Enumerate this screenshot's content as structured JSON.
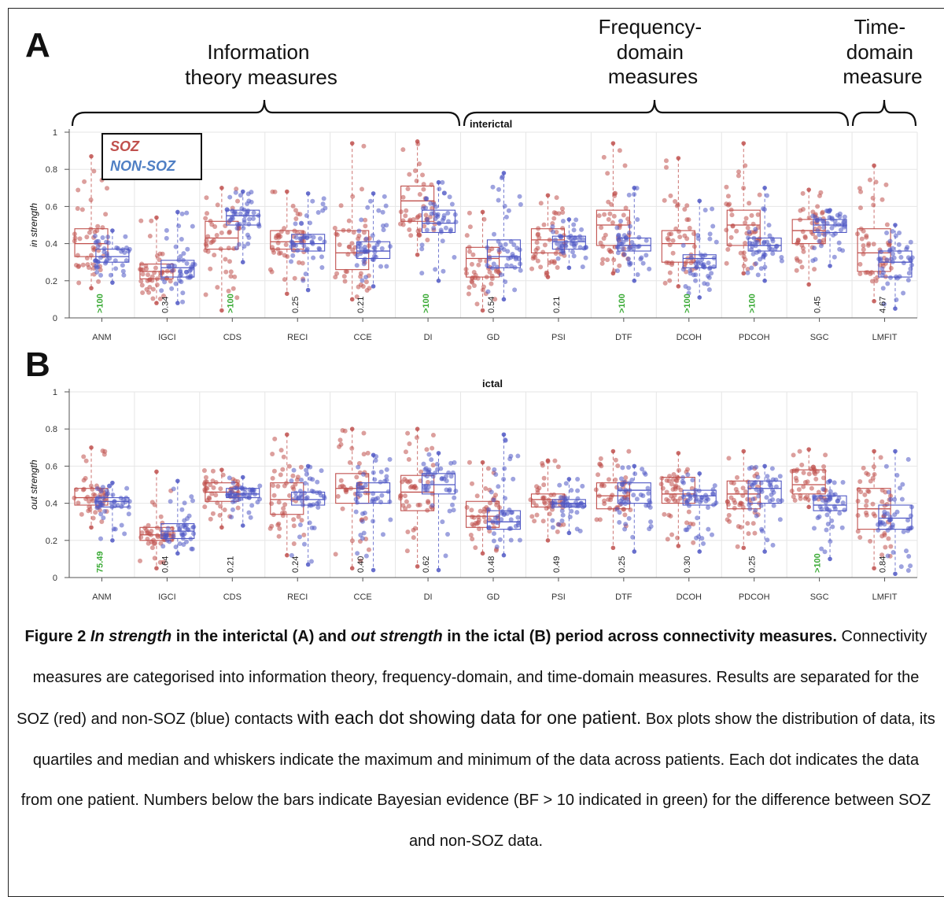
{
  "panel_labels": {
    "a": "A",
    "b": "B"
  },
  "groups": [
    {
      "label_lines": [
        "Information",
        "theory measures"
      ]
    },
    {
      "label_lines": [
        "Frequency-",
        "domain",
        "measures"
      ]
    },
    {
      "label_lines": [
        "Time-",
        "domain",
        "measure"
      ]
    }
  ],
  "legend": {
    "soz": "SOZ",
    "nonsoz": "NON-SOZ"
  },
  "colors": {
    "soz": "#c0504d",
    "nonsoz": "#4f57c4",
    "green": "#3aaa35",
    "grid": "#e6e6e6",
    "text": "#333333"
  },
  "chart_data": [
    {
      "type": "box",
      "title": "interictal",
      "ylabel": "in strength",
      "ylim": [
        0,
        1
      ],
      "yticks": [
        "0",
        "0.2",
        "0.4",
        "0.6",
        "0.8",
        "1"
      ],
      "grid": true,
      "legend_position": "top-left",
      "categories": [
        "ANM",
        "IGCI",
        "CDS",
        "RECI",
        "CCE",
        "DI",
        "GD",
        "PSI",
        "DTF",
        "DCOH",
        "PDCOH",
        "SGC",
        "LMFIT"
      ],
      "bayes_factors": [
        ">100",
        "0.34",
        ">100",
        "0.25",
        "0.21",
        ">100",
        "0.54",
        "0.21",
        ">100",
        ">100",
        ">100",
        "0.45",
        "4.67"
      ],
      "bf_green": [
        true,
        false,
        true,
        false,
        false,
        true,
        false,
        false,
        true,
        true,
        true,
        false,
        false
      ],
      "series": [
        {
          "name": "SOZ",
          "stats": [
            [
              0.16,
              0.33,
              0.4,
              0.48,
              0.87
            ],
            [
              0.08,
              0.21,
              0.25,
              0.29,
              0.54
            ],
            [
              0.04,
              0.37,
              0.43,
              0.52,
              0.7
            ],
            [
              0.13,
              0.37,
              0.41,
              0.47,
              0.68
            ],
            [
              0.1,
              0.26,
              0.35,
              0.47,
              0.94
            ],
            [
              0.34,
              0.52,
              0.63,
              0.71,
              0.95
            ],
            [
              0.04,
              0.22,
              0.32,
              0.38,
              0.57
            ],
            [
              0.22,
              0.35,
              0.42,
              0.48,
              0.66
            ],
            [
              0.24,
              0.39,
              0.5,
              0.58,
              0.94
            ],
            [
              0.17,
              0.3,
              0.4,
              0.47,
              0.86
            ],
            [
              0.24,
              0.39,
              0.5,
              0.58,
              0.94
            ],
            [
              0.18,
              0.4,
              0.47,
              0.53,
              0.69
            ],
            [
              0.09,
              0.25,
              0.35,
              0.48,
              0.82
            ]
          ]
        },
        {
          "name": "NON-SOZ",
          "stats": [
            [
              0.19,
              0.3,
              0.33,
              0.37,
              0.47
            ],
            [
              0.08,
              0.22,
              0.27,
              0.31,
              0.57
            ],
            [
              0.3,
              0.5,
              0.55,
              0.58,
              0.68
            ],
            [
              0.15,
              0.36,
              0.4,
              0.45,
              0.67
            ],
            [
              0.17,
              0.32,
              0.36,
              0.41,
              0.67
            ],
            [
              0.2,
              0.46,
              0.51,
              0.58,
              0.73
            ],
            [
              0.1,
              0.27,
              0.33,
              0.42,
              0.78
            ],
            [
              0.27,
              0.37,
              0.41,
              0.44,
              0.53
            ],
            [
              0.2,
              0.36,
              0.39,
              0.43,
              0.7
            ],
            [
              0.11,
              0.27,
              0.32,
              0.34,
              0.63
            ],
            [
              0.2,
              0.36,
              0.39,
              0.43,
              0.7
            ],
            [
              0.28,
              0.46,
              0.5,
              0.53,
              0.58
            ],
            [
              0.05,
              0.22,
              0.3,
              0.36,
              0.5
            ]
          ]
        }
      ]
    },
    {
      "type": "box",
      "title": "ictal",
      "ylabel": "out strength",
      "ylim": [
        0,
        1
      ],
      "yticks": [
        "0",
        "0.2",
        "0.4",
        "0.6",
        "0.8",
        "1"
      ],
      "grid": true,
      "categories": [
        "ANM",
        "IGCI",
        "CDS",
        "RECI",
        "CCE",
        "DI",
        "GD",
        "PSI",
        "DTF",
        "DCOH",
        "PDCOH",
        "SGC",
        "LMFIT"
      ],
      "bayes_factors": [
        "75.49",
        "0.64",
        "0.21",
        "0.24",
        "0.40",
        "0.62",
        "0.48",
        "0.49",
        "0.25",
        "0.30",
        "0.25",
        ">100",
        "0.84"
      ],
      "bf_green": [
        true,
        false,
        false,
        false,
        false,
        false,
        false,
        false,
        false,
        false,
        false,
        true,
        false
      ],
      "series": [
        {
          "name": "SOZ",
          "stats": [
            [
              0.27,
              0.39,
              0.43,
              0.48,
              0.7
            ],
            [
              0.05,
              0.2,
              0.23,
              0.27,
              0.57
            ],
            [
              0.27,
              0.41,
              0.46,
              0.51,
              0.58
            ],
            [
              0.12,
              0.34,
              0.42,
              0.51,
              0.77
            ],
            [
              0.05,
              0.4,
              0.48,
              0.56,
              0.8
            ],
            [
              0.06,
              0.36,
              0.46,
              0.55,
              0.8
            ],
            [
              0.13,
              0.27,
              0.33,
              0.41,
              0.62
            ],
            [
              0.2,
              0.38,
              0.42,
              0.45,
              0.63
            ],
            [
              0.16,
              0.37,
              0.44,
              0.51,
              0.68
            ],
            [
              0.17,
              0.4,
              0.45,
              0.54,
              0.67
            ],
            [
              0.16,
              0.37,
              0.45,
              0.52,
              0.68
            ],
            [
              0.38,
              0.45,
              0.5,
              0.58,
              0.69
            ],
            [
              0.05,
              0.26,
              0.37,
              0.48,
              0.68
            ]
          ]
        },
        {
          "name": "NON-SOZ",
          "stats": [
            [
              0.2,
              0.38,
              0.41,
              0.43,
              0.51
            ],
            [
              0.13,
              0.21,
              0.25,
              0.29,
              0.52
            ],
            [
              0.28,
              0.43,
              0.45,
              0.48,
              0.54
            ],
            [
              0.07,
              0.39,
              0.42,
              0.46,
              0.6
            ],
            [
              0.04,
              0.4,
              0.46,
              0.51,
              0.66
            ],
            [
              0.04,
              0.45,
              0.5,
              0.56,
              0.67
            ],
            [
              0.12,
              0.26,
              0.3,
              0.36,
              0.77
            ],
            [
              0.24,
              0.38,
              0.4,
              0.42,
              0.53
            ],
            [
              0.14,
              0.4,
              0.47,
              0.51,
              0.6
            ],
            [
              0.14,
              0.39,
              0.44,
              0.47,
              0.56
            ],
            [
              0.14,
              0.4,
              0.48,
              0.52,
              0.6
            ],
            [
              0.1,
              0.36,
              0.39,
              0.44,
              0.52
            ],
            [
              0.02,
              0.26,
              0.32,
              0.39,
              0.68
            ]
          ]
        }
      ]
    }
  ],
  "caption": {
    "fig": "Figure 2 ",
    "in_strength": "In strength",
    "mid1": " in the interictal (A) and ",
    "out_strength": "out strength",
    "mid2": " in the ictal (B) period across connectivity measures.",
    "body1": " Connectivity measures are categorised into information theory, frequency-domain, and time-domain measures. Results are separated for the SOZ (red) and non-SOZ (blue) contacts ",
    "body2": "with each dot showing data for one patient.",
    "body3": " Box plots show the distribution of data, its quartiles and median and whiskers indicate the maximum and minimum of the data across patients. Each dot indicates the data from one patient. Numbers below the bars indicate Bayesian evidence (BF > 10 indicated in green) for the difference between SOZ and non-SOZ data."
  }
}
